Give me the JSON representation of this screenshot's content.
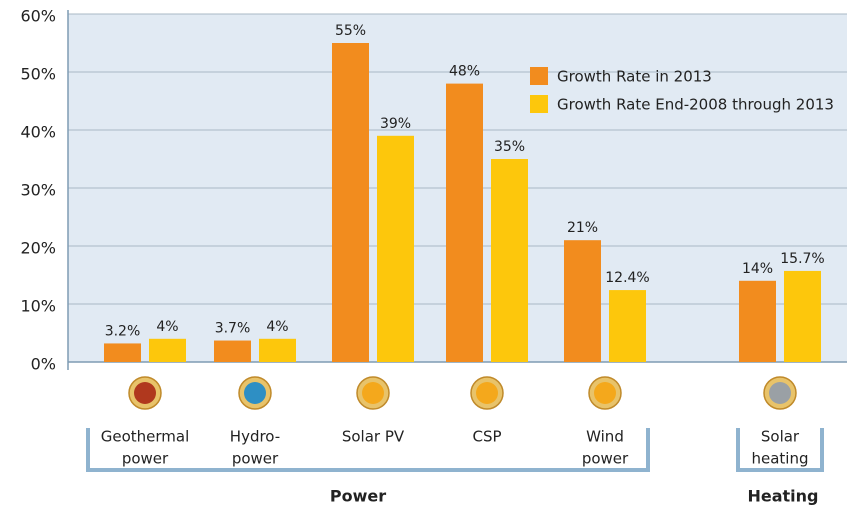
{
  "chart_data": {
    "type": "bar",
    "categories": [
      [
        "Geothermal",
        "power"
      ],
      [
        "Hydro-",
        "power"
      ],
      [
        "Solar PV"
      ],
      [
        "CSP"
      ],
      [
        "Wind",
        "power"
      ],
      [
        "Solar",
        "heating"
      ]
    ],
    "groups": [
      "Power",
      "Heating"
    ],
    "series": [
      {
        "name": "Growth Rate in 2013",
        "color": "#f28c1e",
        "values": [
          3.2,
          3.7,
          55,
          48,
          21,
          14
        ],
        "value_labels": [
          "3.2%",
          "3.7%",
          "55%",
          "48%",
          "21%",
          "14%"
        ]
      },
      {
        "name": "Growth Rate End-2008 through 2013",
        "color": "#fdc70c",
        "values": [
          4,
          4,
          39,
          35,
          12.4,
          15.7
        ],
        "value_labels": [
          "4%",
          "4%",
          "39%",
          "35%",
          "12.4%",
          "15.7%"
        ]
      }
    ],
    "ylim": [
      0,
      60
    ],
    "yticks": [
      {
        "value": 0,
        "label": "0%"
      },
      {
        "value": 10,
        "label": "10%"
      },
      {
        "value": 20,
        "label": "20%"
      },
      {
        "value": 30,
        "label": "30%"
      },
      {
        "value": 40,
        "label": "40%"
      },
      {
        "value": 50,
        "label": "50%"
      },
      {
        "value": 60,
        "label": "60%"
      }
    ],
    "grid": true
  }
}
